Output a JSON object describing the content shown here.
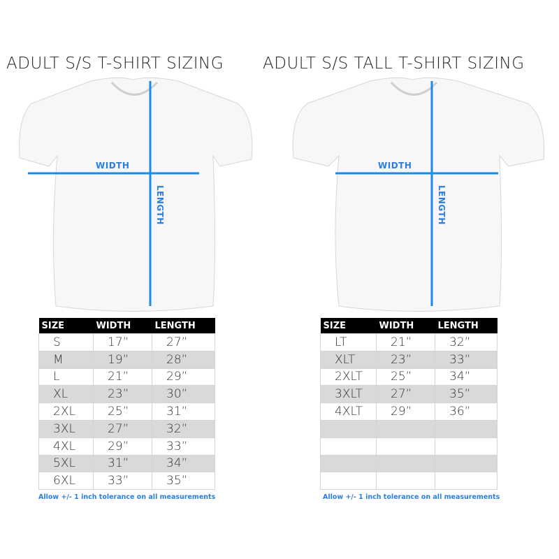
{
  "left": {
    "title": "ADULT S/S T-SHIRT SIZING",
    "width_label": "WIDTH",
    "length_label": "LENGTH",
    "headers": [
      "SIZE",
      "WIDTH",
      "LENGTH"
    ],
    "rows": [
      [
        "S",
        "17”",
        "27”"
      ],
      [
        "M",
        "19”",
        "28”"
      ],
      [
        "L",
        "21”",
        "29”"
      ],
      [
        "XL",
        "23”",
        "30”"
      ],
      [
        "2XL",
        "25”",
        "31”"
      ],
      [
        "3XL",
        "27”",
        "32”"
      ],
      [
        "4XL",
        "29”",
        "33”"
      ],
      [
        "5XL",
        "31”",
        "34”"
      ],
      [
        "6XL",
        "33”",
        "35”"
      ]
    ],
    "note": "Allow +/- 1 inch tolerance on all measurements"
  },
  "right": {
    "title": "ADULT S/S TALL T-SHIRT SIZING",
    "width_label": "WIDTH",
    "length_label": "LENGTH",
    "headers": [
      "SIZE",
      "WIDTH",
      "LENGTH"
    ],
    "rows": [
      [
        "LT",
        "21”",
        "32”"
      ],
      [
        "XLT",
        "23”",
        "33”"
      ],
      [
        "2XLT",
        "25”",
        "34”"
      ],
      [
        "3XLT",
        "27”",
        "35”"
      ],
      [
        "4XLT",
        "29”",
        "36”"
      ],
      [
        "",
        "",
        ""
      ],
      [
        "",
        "",
        ""
      ],
      [
        "",
        "",
        ""
      ],
      [
        "",
        "",
        ""
      ]
    ],
    "note": "Allow +/- 1 inch tolerance on all measurements"
  },
  "colors": {
    "measure_line": "#1e8ae8",
    "header_bg": "#000000",
    "stripe": "#d9d9d9"
  }
}
